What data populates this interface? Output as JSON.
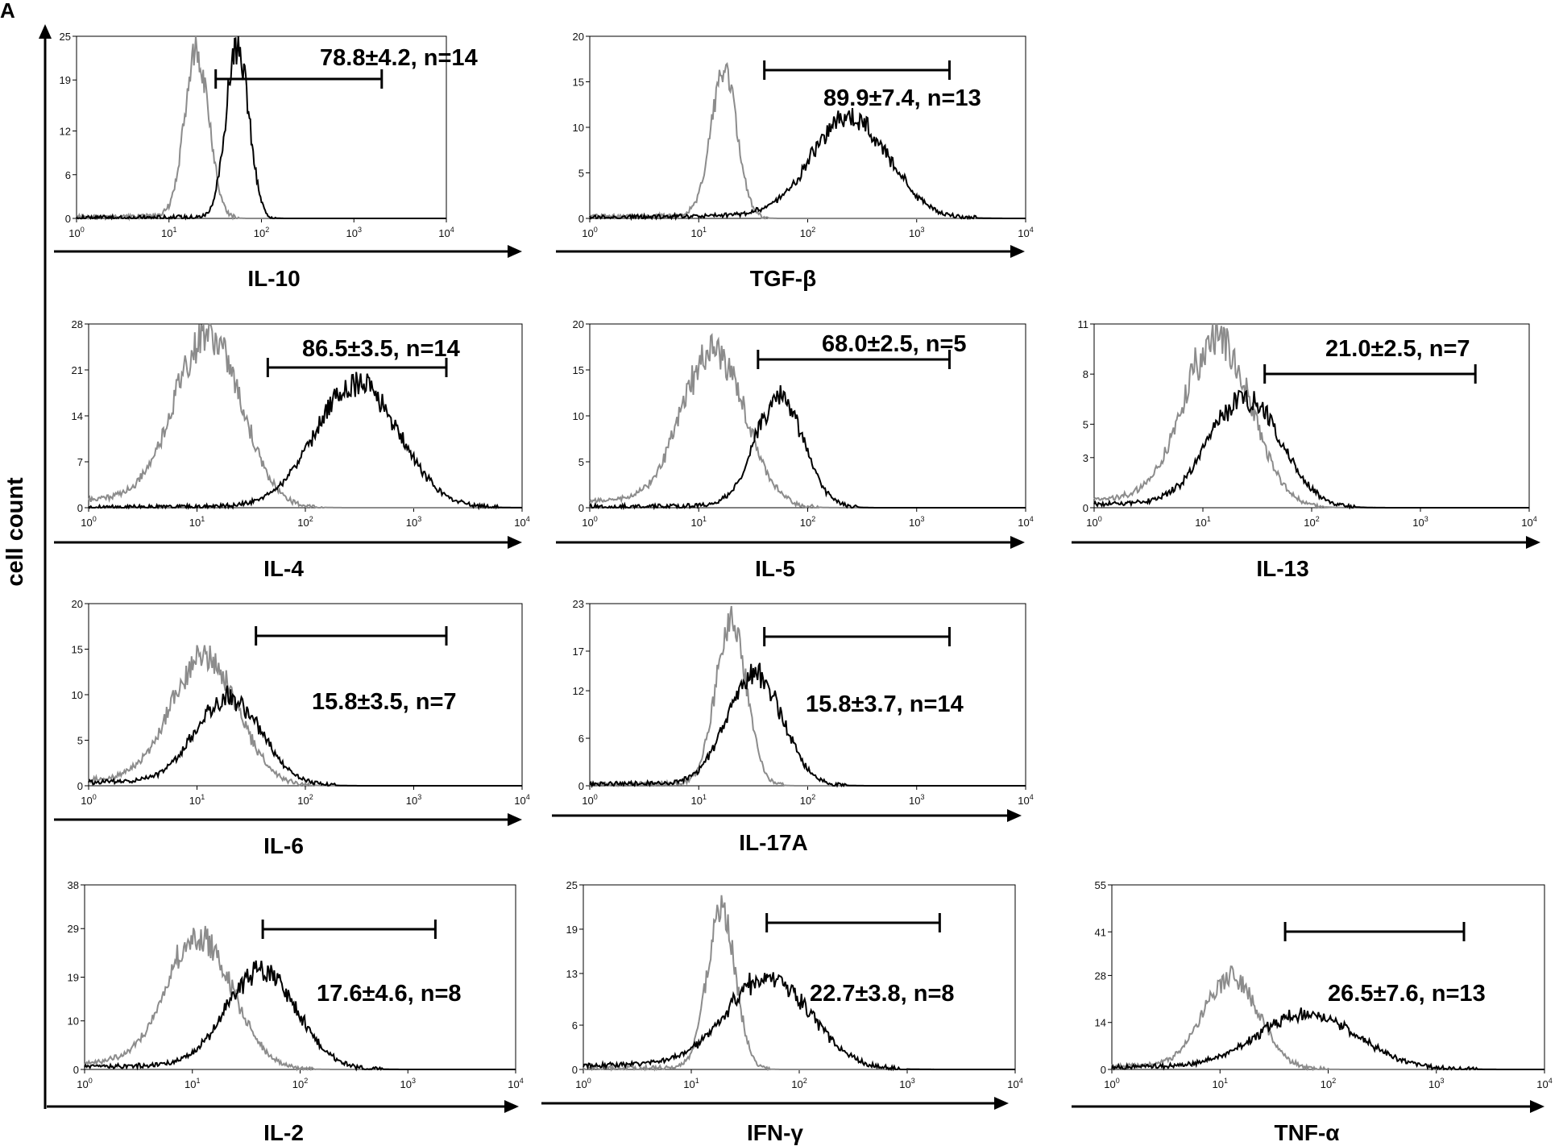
{
  "figure": {
    "panel_letter": "A",
    "ylabel": "cell count"
  },
  "colors": {
    "control": "#8c8c8c",
    "stained": "#000000"
  },
  "chart_data": [
    {
      "type": "line",
      "xlabel": "IL-10",
      "xscale": "log",
      "xlim": [
        1,
        10000
      ],
      "xticks": [
        "10",
        "10",
        "10",
        "10",
        "10"
      ],
      "xtick_exponents": [
        "0",
        "1",
        "2",
        "3",
        "4"
      ],
      "ylim": [
        0,
        25
      ],
      "yticks": [
        0,
        6,
        12,
        19,
        25
      ],
      "gate": [
        32,
        2000
      ],
      "annotation": "78.8±4.2, n=14",
      "series": [
        {
          "role": "control",
          "peak_x": 20,
          "width": 0.13,
          "peak_y": 23,
          "tail": 0.4
        },
        {
          "role": "stained",
          "peak_x": 55,
          "width": 0.12,
          "peak_y": 24,
          "tail": 0.2
        }
      ]
    },
    {
      "type": "line",
      "xlabel": "TGF-β",
      "xscale": "log",
      "xlim": [
        1,
        10000
      ],
      "xticks": [
        "10",
        "10",
        "10",
        "10",
        "10"
      ],
      "xtick_exponents": [
        "0",
        "1",
        "2",
        "3",
        "4"
      ],
      "ylim": [
        0,
        20
      ],
      "yticks": [
        0,
        5,
        10,
        15,
        20
      ],
      "gate": [
        40,
        2000
      ],
      "annotation": "89.9±7.4, n=13",
      "series": [
        {
          "role": "control",
          "peak_x": 17,
          "width": 0.12,
          "peak_y": 16,
          "tail": 0.4
        },
        {
          "role": "stained",
          "peak_x": 250,
          "width": 0.35,
          "peak_y": 11,
          "tail": 0.6
        }
      ]
    },
    {
      "type": "line",
      "xlabel": "IL-4",
      "xscale": "log",
      "xlim": [
        1,
        10000
      ],
      "xticks": [
        "10",
        "10",
        "10",
        "10",
        "10"
      ],
      "xtick_exponents": [
        "0",
        "1",
        "2",
        "3",
        "4"
      ],
      "ylim": [
        0,
        28
      ],
      "yticks": [
        0,
        7,
        14,
        21,
        28
      ],
      "gate": [
        45,
        2000
      ],
      "annotation": "86.5±3.5, n=14",
      "series": [
        {
          "role": "control",
          "peak_x": 13,
          "width": 0.3,
          "peak_y": 26,
          "tail": 2.5
        },
        {
          "role": "stained",
          "peak_x": 300,
          "width": 0.38,
          "peak_y": 19,
          "tail": 0.3
        }
      ]
    },
    {
      "type": "line",
      "xlabel": "IL-5",
      "xscale": "log",
      "xlim": [
        1,
        10000
      ],
      "xticks": [
        "10",
        "10",
        "10",
        "10",
        "10"
      ],
      "xtick_exponents": [
        "0",
        "1",
        "2",
        "3",
        "4"
      ],
      "ylim": [
        0,
        20
      ],
      "yticks": [
        0,
        5,
        10,
        15,
        20
      ],
      "gate": [
        35,
        2000
      ],
      "annotation": "68.0±2.5, n=5",
      "series": [
        {
          "role": "control",
          "peak_x": 14,
          "width": 0.28,
          "peak_y": 17,
          "tail": 1.5
        },
        {
          "role": "stained",
          "peak_x": 55,
          "width": 0.22,
          "peak_y": 12,
          "tail": 0.3
        }
      ]
    },
    {
      "type": "line",
      "xlabel": "IL-13",
      "xscale": "log",
      "xlim": [
        1,
        10000
      ],
      "xticks": [
        "10",
        "10",
        "10",
        "10",
        "10"
      ],
      "xtick_exponents": [
        "0",
        "1",
        "2",
        "3",
        "4"
      ],
      "ylim": [
        0,
        11
      ],
      "yticks": [
        0,
        3,
        5,
        8,
        11
      ],
      "gate": [
        37,
        3200
      ],
      "annotation": "21.0±2.5, n=7",
      "series": [
        {
          "role": "control",
          "peak_x": 14,
          "width": 0.3,
          "peak_y": 10,
          "tail": 1.0
        },
        {
          "role": "stained",
          "peak_x": 25,
          "width": 0.32,
          "peak_y": 6.5,
          "tail": 0.5
        }
      ]
    },
    {
      "type": "line",
      "xlabel": "IL-6",
      "xscale": "log",
      "xlim": [
        1,
        10000
      ],
      "xticks": [
        "10",
        "10",
        "10",
        "10",
        "10"
      ],
      "xtick_exponents": [
        "0",
        "1",
        "2",
        "3",
        "4"
      ],
      "ylim": [
        0,
        20
      ],
      "yticks": [
        0,
        5,
        10,
        15,
        20
      ],
      "gate": [
        35,
        2000
      ],
      "annotation": "15.8±3.5, n=7",
      "series": [
        {
          "role": "control",
          "peak_x": 12,
          "width": 0.3,
          "peak_y": 14,
          "tail": 1.2
        },
        {
          "role": "stained",
          "peak_x": 20,
          "width": 0.3,
          "peak_y": 9.5,
          "tail": 0.8
        }
      ]
    },
    {
      "type": "line",
      "xlabel": "IL-17A",
      "xscale": "log",
      "xlim": [
        1,
        10000
      ],
      "xticks": [
        "10",
        "10",
        "10",
        "10",
        "10"
      ],
      "xtick_exponents": [
        "0",
        "1",
        "2",
        "3",
        "4"
      ],
      "ylim": [
        0,
        23
      ],
      "yticks": [
        0,
        6,
        12,
        17,
        23
      ],
      "gate": [
        40,
        2000
      ],
      "annotation": "15.8±3.7, n=14",
      "series": [
        {
          "role": "control",
          "peak_x": 20,
          "width": 0.14,
          "peak_y": 21,
          "tail": 0.4
        },
        {
          "role": "stained",
          "peak_x": 33,
          "width": 0.25,
          "peak_y": 14,
          "tail": 0.5
        }
      ]
    },
    {
      "type": "line",
      "xlabel": "IL-2",
      "xscale": "log",
      "xlim": [
        1,
        10000
      ],
      "xticks": [
        "10",
        "10",
        "10",
        "10",
        "10"
      ],
      "xtick_exponents": [
        "0",
        "1",
        "2",
        "3",
        "4"
      ],
      "ylim": [
        0,
        38
      ],
      "yticks": [
        0,
        10,
        19,
        29,
        38
      ],
      "gate": [
        45,
        1800
      ],
      "annotation": "17.6±4.6, n=8",
      "series": [
        {
          "role": "control",
          "peak_x": 12,
          "width": 0.3,
          "peak_y": 27,
          "tail": 2.5
        },
        {
          "role": "stained",
          "peak_x": 45,
          "width": 0.32,
          "peak_y": 20,
          "tail": 1.5
        }
      ]
    },
    {
      "type": "line",
      "xlabel": "IFN-γ",
      "xscale": "log",
      "xlim": [
        1,
        10000
      ],
      "xticks": [
        "10",
        "10",
        "10",
        "10",
        "10"
      ],
      "xtick_exponents": [
        "0",
        "1",
        "2",
        "3",
        "4"
      ],
      "ylim": [
        0,
        25
      ],
      "yticks": [
        0,
        6,
        13,
        19,
        25
      ],
      "gate": [
        50,
        2000
      ],
      "annotation": "22.7±3.8, n=8",
      "series": [
        {
          "role": "control",
          "peak_x": 19,
          "width": 0.13,
          "peak_y": 22,
          "tail": 0.3
        },
        {
          "role": "stained",
          "peak_x": 55,
          "width": 0.38,
          "peak_y": 12,
          "tail": 1.5
        }
      ]
    },
    {
      "type": "line",
      "xlabel": "TNF-α",
      "xscale": "log",
      "xlim": [
        1,
        10000
      ],
      "xticks": [
        "10",
        "10",
        "10",
        "10",
        "10"
      ],
      "xtick_exponents": [
        "0",
        "1",
        "2",
        "3",
        "4"
      ],
      "ylim": [
        0,
        55
      ],
      "yticks": [
        0,
        14,
        28,
        41,
        55
      ],
      "gate": [
        40,
        1800
      ],
      "annotation": "26.5±7.6,  n=13",
      "series": [
        {
          "role": "control",
          "peak_x": 13,
          "width": 0.25,
          "peak_y": 27,
          "tail": 2.0
        },
        {
          "role": "stained",
          "peak_x": 70,
          "width": 0.45,
          "peak_y": 16,
          "tail": 2.0
        }
      ]
    }
  ]
}
